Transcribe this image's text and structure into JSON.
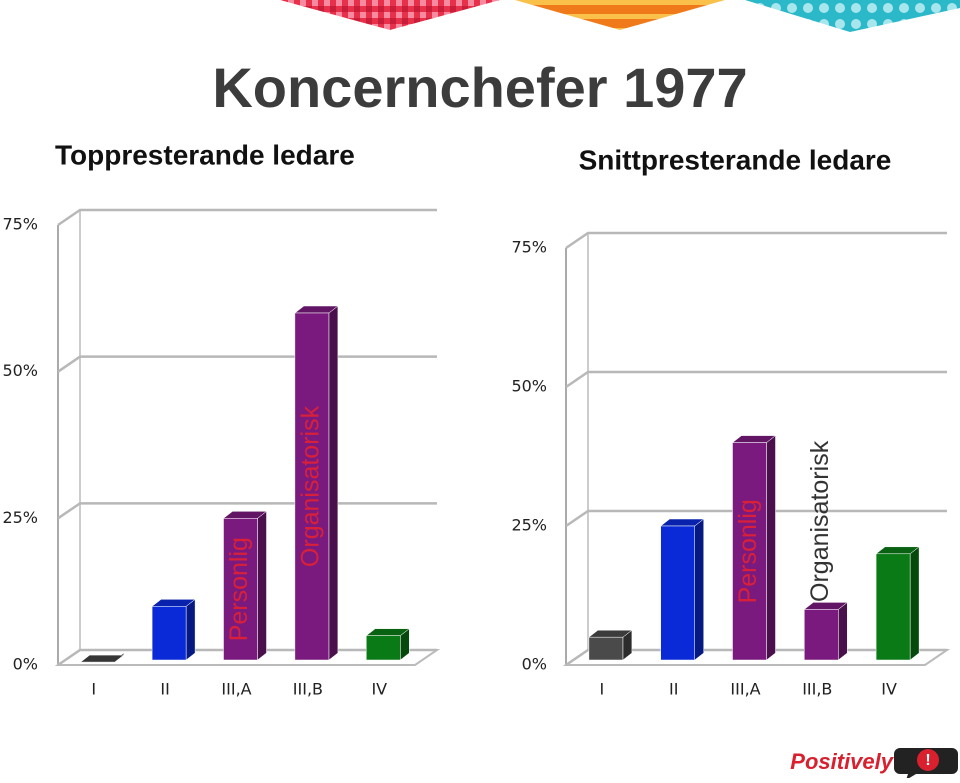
{
  "title": "Koncernchefer 1977",
  "logo": "Positively",
  "logo_icon": "!",
  "chart_data": [
    {
      "type": "bar",
      "title": "Toppresterande ledare",
      "categories": [
        "I",
        "II",
        "III,A",
        "III,B",
        "IV"
      ],
      "values": [
        0.5,
        10,
        25,
        60,
        5
      ],
      "colors": [
        "#444444",
        "#0a2ad8",
        "#7a1a7e",
        "#7a1a7e",
        "#0a7a16"
      ],
      "ylim": [
        0,
        75
      ],
      "yticks": [
        {
          "value": 0,
          "label": "0%"
        },
        {
          "value": 25,
          "label": "25%"
        },
        {
          "value": 50,
          "label": "50%"
        },
        {
          "value": 75,
          "label": "75%"
        }
      ],
      "grid": true,
      "annotations": [
        "Personlig",
        "Organisatorisk"
      ]
    },
    {
      "type": "bar",
      "title": "Snittpresterande ledare",
      "categories": [
        "I",
        "II",
        "III,A",
        "III,B",
        "IV"
      ],
      "values": [
        5,
        25,
        40,
        10,
        20
      ],
      "colors": [
        "#4a4a4a",
        "#0a2ad8",
        "#7a1a7e",
        "#7a1a7e",
        "#0a7a16"
      ],
      "ylim": [
        0,
        75
      ],
      "yticks": [
        {
          "value": 0,
          "label": "0%"
        },
        {
          "value": 25,
          "label": "25%"
        },
        {
          "value": 50,
          "label": "50%"
        },
        {
          "value": 75,
          "label": "75%"
        }
      ],
      "grid": true,
      "annotations": [
        "Personlig",
        "Organisatorisk"
      ]
    }
  ]
}
